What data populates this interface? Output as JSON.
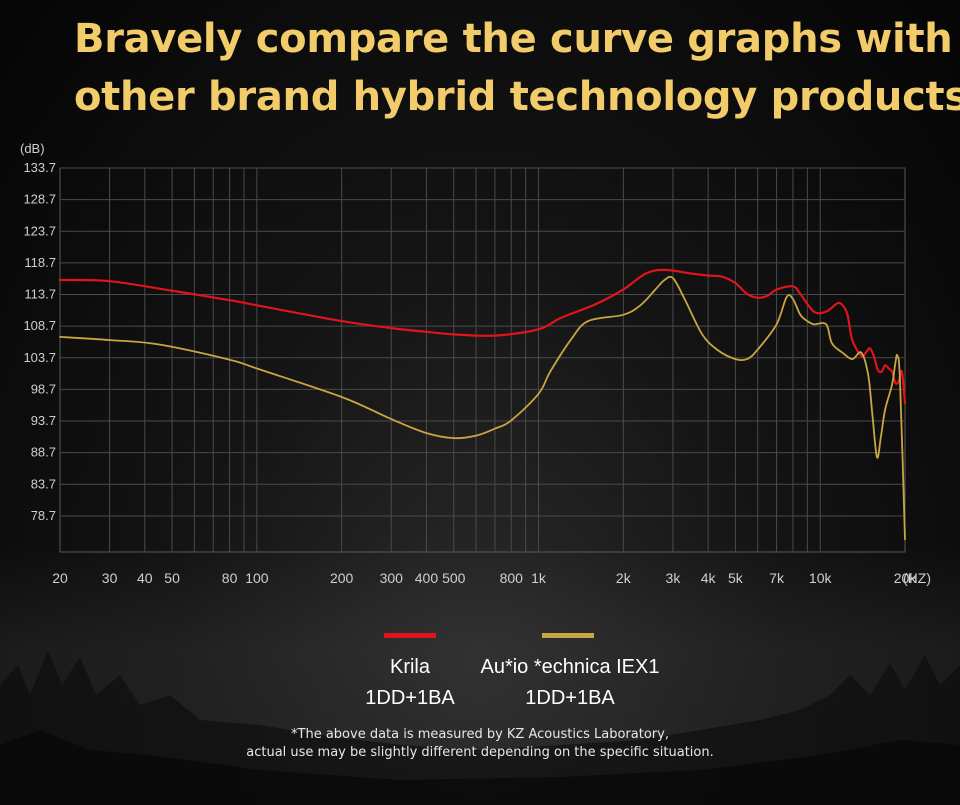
{
  "headline": {
    "line1": "Bravely compare the curve graphs with",
    "line2": "other brand hybrid technology products."
  },
  "chart_data": {
    "type": "line",
    "ylabel": "(dB)",
    "xlabel": "(HZ)",
    "y_ticks": [
      133.7,
      128.7,
      123.7,
      118.7,
      113.7,
      108.7,
      103.7,
      98.7,
      93.7,
      88.7,
      83.7,
      78.7
    ],
    "ylim": [
      73,
      133.7
    ],
    "xlim": [
      20,
      20000
    ],
    "xscale": "log",
    "x_ticks": [
      {
        "value": 20,
        "label": "20"
      },
      {
        "value": 30,
        "label": "30"
      },
      {
        "value": 40,
        "label": "40"
      },
      {
        "value": 50,
        "label": "50"
      },
      {
        "value": 80,
        "label": "80"
      },
      {
        "value": 100,
        "label": "100"
      },
      {
        "value": 200,
        "label": "200"
      },
      {
        "value": 300,
        "label": "300"
      },
      {
        "value": 400,
        "label": "400"
      },
      {
        "value": 500,
        "label": "500"
      },
      {
        "value": 800,
        "label": "800"
      },
      {
        "value": 1000,
        "label": "1k"
      },
      {
        "value": 2000,
        "label": "2k"
      },
      {
        "value": 3000,
        "label": "3k"
      },
      {
        "value": 4000,
        "label": "4k"
      },
      {
        "value": 5000,
        "label": "5k"
      },
      {
        "value": 7000,
        "label": "7k"
      },
      {
        "value": 10000,
        "label": "10k"
      },
      {
        "value": 20000,
        "label": "20k"
      }
    ],
    "grid": true,
    "series": [
      {
        "name": "Krila 1DD+1BA",
        "color": "#e0141c",
        "points": [
          [
            20,
            116
          ],
          [
            30,
            115.8
          ],
          [
            50,
            114.3
          ],
          [
            80,
            112.8
          ],
          [
            100,
            112
          ],
          [
            200,
            109.5
          ],
          [
            300,
            108.4
          ],
          [
            400,
            107.8
          ],
          [
            500,
            107.4
          ],
          [
            700,
            107.2
          ],
          [
            1000,
            108.2
          ],
          [
            1200,
            110
          ],
          [
            1600,
            112.2
          ],
          [
            2000,
            114.5
          ],
          [
            2400,
            117
          ],
          [
            2800,
            117.6
          ],
          [
            3500,
            117
          ],
          [
            4000,
            116.7
          ],
          [
            4500,
            116.5
          ],
          [
            5000,
            115.5
          ],
          [
            5500,
            113.8
          ],
          [
            6000,
            113.2
          ],
          [
            6500,
            113.5
          ],
          [
            7000,
            114.5
          ],
          [
            8000,
            115
          ],
          [
            8500,
            113.8
          ],
          [
            9500,
            111
          ],
          [
            10500,
            111
          ],
          [
            11500,
            112.3
          ],
          [
            12000,
            112
          ],
          [
            12500,
            110.5
          ],
          [
            13000,
            106.5
          ],
          [
            14000,
            104
          ],
          [
            14500,
            104.5
          ],
          [
            15000,
            105.2
          ],
          [
            15500,
            104
          ],
          [
            16000,
            101.8
          ],
          [
            16500,
            101.5
          ],
          [
            17000,
            102.5
          ],
          [
            17500,
            102
          ],
          [
            18000,
            101.5
          ],
          [
            18500,
            99.7
          ],
          [
            19000,
            100
          ],
          [
            19500,
            101.5
          ],
          [
            20000,
            96.5
          ]
        ]
      },
      {
        "name": "Au*io *echnica IEX1 1DD+1BA",
        "color": "#c8a642",
        "points": [
          [
            20,
            107
          ],
          [
            30,
            106.5
          ],
          [
            45,
            105.8
          ],
          [
            80,
            103.4
          ],
          [
            100,
            102
          ],
          [
            200,
            97.5
          ],
          [
            300,
            94
          ],
          [
            400,
            91.8
          ],
          [
            500,
            91
          ],
          [
            600,
            91.4
          ],
          [
            700,
            92.5
          ],
          [
            800,
            93.8
          ],
          [
            1000,
            98
          ],
          [
            1100,
            101.5
          ],
          [
            1300,
            106.5
          ],
          [
            1500,
            109.5
          ],
          [
            2000,
            110.5
          ],
          [
            2300,
            112
          ],
          [
            2600,
            114.5
          ],
          [
            2800,
            116
          ],
          [
            3000,
            116.3
          ],
          [
            3300,
            113
          ],
          [
            3800,
            107.5
          ],
          [
            4300,
            105
          ],
          [
            5000,
            103.5
          ],
          [
            5500,
            103.5
          ],
          [
            6000,
            105
          ],
          [
            7000,
            109
          ],
          [
            7600,
            113.3
          ],
          [
            8000,
            113
          ],
          [
            8500,
            110.5
          ],
          [
            9000,
            109.5
          ],
          [
            9500,
            109
          ],
          [
            10500,
            109
          ],
          [
            11000,
            106
          ],
          [
            12000,
            104.5
          ],
          [
            13000,
            103.5
          ],
          [
            14000,
            104.5
          ],
          [
            14800,
            101
          ],
          [
            15300,
            95
          ],
          [
            15900,
            88
          ],
          [
            16400,
            91
          ],
          [
            17000,
            95.5
          ],
          [
            18000,
            99.5
          ],
          [
            18500,
            103
          ],
          [
            18800,
            104
          ],
          [
            19200,
            100
          ],
          [
            20000,
            75
          ]
        ]
      }
    ]
  },
  "legend": [
    {
      "color": "#e0141c",
      "line1": "Krila",
      "line2": "1DD+1BA"
    },
    {
      "color": "#c8a642",
      "line1": "Au*io *echnica IEX1",
      "line2": "1DD+1BA"
    }
  ],
  "note": {
    "line1": "*The above data is measured by KZ Acoustics Laboratory,",
    "line2": "actual use may be slightly different depending on the specific situation."
  }
}
